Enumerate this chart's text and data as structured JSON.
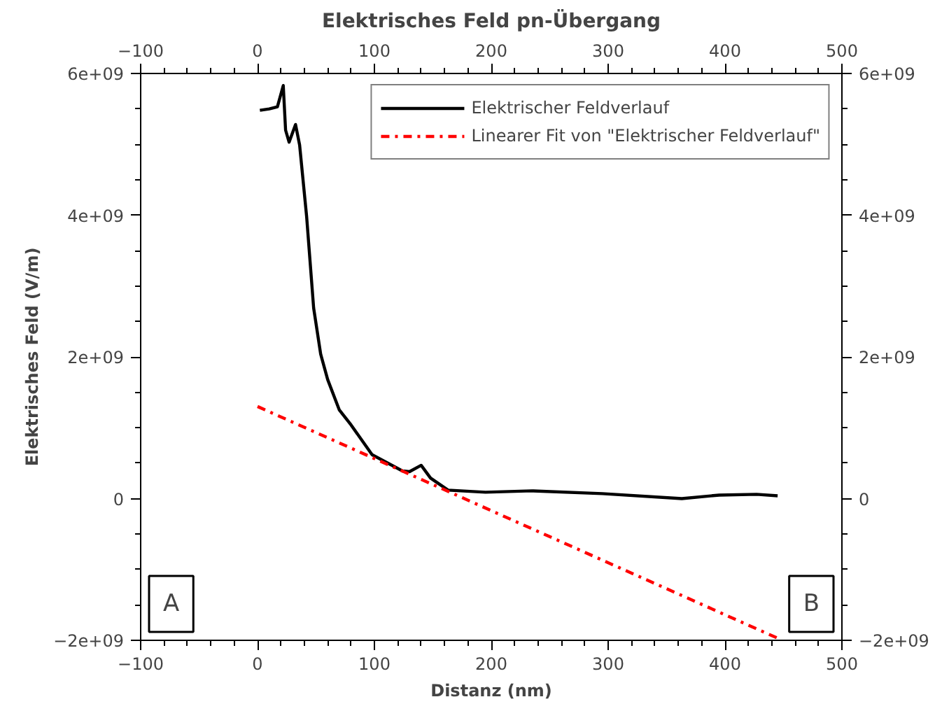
{
  "chart_data": {
    "type": "line",
    "title": "Elektrisches Feld pn-Übergang",
    "xlabel": "Distanz (nm)",
    "ylabel": "Elektrisches Feld (V/m)",
    "xlim": [
      -100,
      500
    ],
    "xticks": [
      -100,
      0,
      100,
      200,
      300,
      400,
      500
    ],
    "x2lim": [
      -100,
      500
    ],
    "x2ticks": [
      -100,
      0,
      100,
      200,
      300,
      400,
      500
    ],
    "ylim": [
      -2000000000.0,
      6000000000.0
    ],
    "yticks": [
      {
        "value": -2000000000.0,
        "label": "−2e+09"
      },
      {
        "value": 0,
        "label": "0"
      },
      {
        "value": 2000000000.0,
        "label": "2e+09"
      },
      {
        "value": 4000000000.0,
        "label": "4e+09"
      },
      {
        "value": 6000000000.0,
        "label": "6e+09"
      }
    ],
    "y2lim": [
      -2000000000.0,
      6000000000.0
    ],
    "y2ticks": [
      {
        "value": -2000000000.0,
        "label": "−2e+09"
      },
      {
        "value": 0,
        "label": "0"
      },
      {
        "value": 2000000000.0,
        "label": "2e+09"
      },
      {
        "value": 4000000000.0,
        "label": "4e+09"
      },
      {
        "value": 6000000000.0,
        "label": "6e+09"
      }
    ],
    "legend": "top right",
    "series": [
      {
        "name": "Elektrischer Feldverlauf",
        "color": "#000000",
        "line_style": "solid",
        "x": [
          2,
          10,
          17,
          22,
          24,
          27,
          32.5,
          36,
          42,
          48,
          54,
          60,
          70,
          80,
          98,
          124,
          130,
          140,
          148,
          163,
          195,
          235,
          295,
          363,
          395,
          427,
          445
        ],
        "values": [
          5480000000.0,
          5500000000.0,
          5530000000.0,
          5830000000.0,
          5200000000.0,
          5030000000.0,
          5280000000.0,
          4990000000.0,
          3980000000.0,
          2690000000.0,
          2040000000.0,
          1680000000.0,
          1250000000.0,
          1040000000.0,
          620000000.0,
          390000000.0,
          380000000.0,
          470000000.0,
          290000000.0,
          120000000.0,
          90000000.0,
          110000000.0,
          70000000.0,
          0.0,
          50000000.0,
          60000000.0,
          40000000.0
        ]
      },
      {
        "name": "Linearer Fit von \"Elektrischer Feldverlauf\"",
        "color": "#ff0000",
        "line_style": "dashdot",
        "x": [
          0,
          445
        ],
        "values": [
          1300000000.0,
          -1970000000.0
        ]
      }
    ],
    "annotations": [
      "A",
      "B"
    ]
  }
}
